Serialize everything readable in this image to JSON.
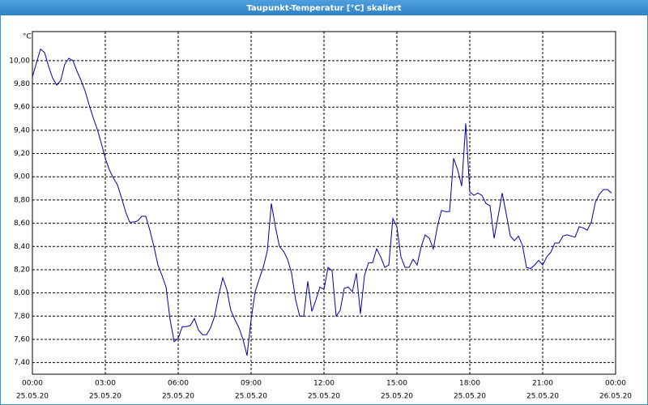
{
  "chart_data": {
    "type": "line",
    "title": "Taupunkt-Temperatur [°C] skaliert",
    "y_unit": "°C",
    "x": [
      0,
      10,
      20,
      30,
      40,
      50,
      60,
      70,
      80,
      90,
      100,
      110,
      120,
      130,
      140,
      150,
      160,
      170,
      180,
      190,
      200,
      210,
      220,
      230,
      240,
      250,
      260,
      270,
      280,
      290,
      300,
      310,
      320,
      330,
      340,
      350,
      360,
      370,
      380,
      390,
      400,
      410,
      420,
      430,
      440,
      450,
      460,
      470,
      480,
      490,
      500,
      510,
      520,
      530,
      540,
      550,
      560,
      570,
      580,
      590,
      600,
      610,
      620,
      630,
      640,
      650,
      660,
      670,
      680,
      690,
      700,
      710,
      720,
      730,
      740,
      750,
      760,
      770,
      780,
      790,
      800,
      810,
      820,
      830,
      840,
      850,
      860,
      870,
      880,
      890,
      900,
      910,
      920,
      930,
      940,
      950,
      960,
      970,
      980,
      990,
      1000,
      1010,
      1020,
      1030,
      1040,
      1050,
      1060,
      1070,
      1080,
      1090,
      1100,
      1110,
      1120,
      1130,
      1140,
      1150,
      1160,
      1170,
      1180,
      1190,
      1200,
      1210,
      1220,
      1230,
      1240,
      1250,
      1260,
      1270,
      1280,
      1290,
      1300,
      1310,
      1320,
      1330,
      1340,
      1350,
      1360,
      1370,
      1380,
      1390,
      1400,
      1410,
      1420,
      1430
    ],
    "values": [
      9.86,
      9.98,
      10.1,
      10.07,
      9.95,
      9.85,
      9.79,
      9.83,
      9.97,
      10.02,
      10.0,
      9.91,
      9.83,
      9.74,
      9.62,
      9.51,
      9.41,
      9.29,
      9.16,
      9.06,
      8.99,
      8.93,
      8.82,
      8.7,
      8.61,
      8.61,
      8.62,
      8.66,
      8.66,
      8.54,
      8.4,
      8.24,
      8.15,
      8.05,
      7.77,
      7.58,
      7.61,
      7.71,
      7.71,
      7.72,
      7.78,
      7.68,
      7.64,
      7.64,
      7.7,
      7.8,
      7.98,
      8.13,
      8.03,
      7.85,
      7.77,
      7.7,
      7.6,
      7.46,
      7.77,
      8.01,
      8.12,
      8.22,
      8.36,
      8.77,
      8.57,
      8.4,
      8.36,
      8.29,
      8.17,
      7.94,
      7.8,
      7.8,
      8.1,
      7.84,
      7.94,
      8.05,
      8.03,
      8.22,
      8.19,
      7.8,
      7.85,
      8.04,
      8.05,
      8.01,
      8.17,
      7.82,
      8.15,
      8.26,
      8.26,
      8.38,
      8.31,
      8.22,
      8.24,
      8.64,
      8.57,
      8.31,
      8.22,
      8.22,
      8.29,
      8.24,
      8.4,
      8.5,
      8.47,
      8.38,
      8.57,
      8.71,
      8.7,
      8.7,
      9.16,
      9.06,
      8.92,
      9.46,
      8.87,
      8.84,
      8.86,
      8.84,
      8.77,
      8.75,
      8.47,
      8.66,
      8.86,
      8.68,
      8.49,
      8.45,
      8.49,
      8.41,
      8.22,
      8.21,
      8.24,
      8.28,
      8.24,
      8.31,
      8.35,
      8.43,
      8.43,
      8.49,
      8.5,
      8.49,
      8.48,
      8.57,
      8.56,
      8.54,
      8.61,
      8.78,
      8.85,
      8.89,
      8.89,
      8.86
    ],
    "color": "#0000a8",
    "xlim": [
      0,
      1440
    ],
    "xticks": [
      {
        "value": 0,
        "label": "00:00",
        "date": "25.05.20"
      },
      {
        "value": 180,
        "label": "03:00",
        "date": "25.05.20"
      },
      {
        "value": 360,
        "label": "06:00",
        "date": "25.05.20"
      },
      {
        "value": 540,
        "label": "09:00",
        "date": "25.05.20"
      },
      {
        "value": 720,
        "label": "12:00",
        "date": "25.05.20"
      },
      {
        "value": 900,
        "label": "15:00",
        "date": "25.05.20"
      },
      {
        "value": 1080,
        "label": "18:00",
        "date": "25.05.20"
      },
      {
        "value": 1260,
        "label": "21:00",
        "date": "25.05.20"
      },
      {
        "value": 1440,
        "label": "00:00",
        "date": "26.05.20"
      }
    ],
    "ylim": [
      7.3,
      10.25
    ],
    "yticks": [
      {
        "value": 7.4,
        "label": "7,40"
      },
      {
        "value": 7.6,
        "label": "7,60"
      },
      {
        "value": 7.8,
        "label": "7,80"
      },
      {
        "value": 8.0,
        "label": "8,00"
      },
      {
        "value": 8.2,
        "label": "8,20"
      },
      {
        "value": 8.4,
        "label": "8,40"
      },
      {
        "value": 8.6,
        "label": "8,60"
      },
      {
        "value": 8.8,
        "label": "8,80"
      },
      {
        "value": 9.0,
        "label": "9,00"
      },
      {
        "value": 9.2,
        "label": "9,20"
      },
      {
        "value": 9.4,
        "label": "9,40"
      },
      {
        "value": 9.6,
        "label": "9,60"
      },
      {
        "value": 9.8,
        "label": "9,80"
      },
      {
        "value": 10.0,
        "label": "10,00"
      }
    ],
    "grid": true
  }
}
